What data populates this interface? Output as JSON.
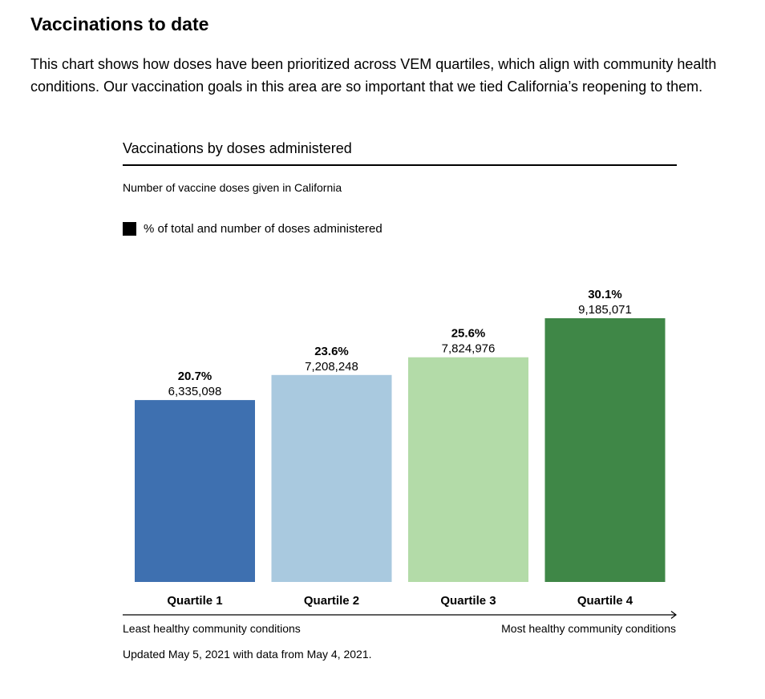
{
  "page": {
    "title": "Vaccinations to date",
    "intro": "This chart shows how doses have been prioritized across VEM quartiles, which align with community health conditions. Our vaccination goals in this area are so important that we tied California’s reopening to them."
  },
  "chart_data": {
    "type": "bar",
    "title": "Vaccinations by doses administered",
    "subtitle": "Number of vaccine doses given in California",
    "legend": {
      "label": "% of total and number of doses administered",
      "color": "#000000",
      "position": "top-left"
    },
    "categories": [
      "Quartile 1",
      "Quartile 2",
      "Quartile 3",
      "Quartile 4"
    ],
    "series": [
      {
        "values": [
          6335098,
          7208248,
          7824976,
          9185071
        ],
        "percent_labels": [
          "20.7%",
          "23.6%",
          "25.6%",
          "30.1%"
        ],
        "value_labels": [
          "6,335,098",
          "7,208,248",
          "7,824,976",
          "9,185,071"
        ],
        "colors": [
          "#3e70b0",
          "#a9c9df",
          "#b3dba8",
          "#3f8747"
        ]
      }
    ],
    "ylim": [
      0,
      9185071
    ],
    "grid": false,
    "axis_arrow": {
      "left_label": "Least healthy community conditions",
      "right_label": "Most healthy community conditions"
    },
    "footnote": "Updated May 5, 2021 with data from May 4, 2021."
  }
}
